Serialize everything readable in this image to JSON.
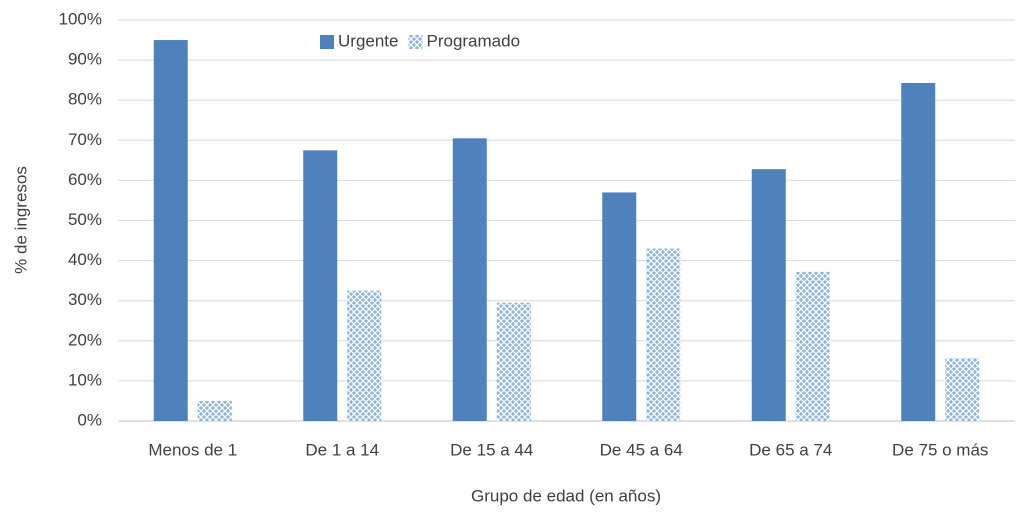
{
  "chart_data": {
    "type": "bar",
    "x_label": "Grupo de edad (en años)",
    "y_label": "% de ingresos",
    "categories": [
      "Menos de 1",
      "De 1 a 14",
      "De 15 a 44",
      "De 45 a 64",
      "De 65 a 74",
      "De 75 o más"
    ],
    "series": [
      {
        "name": "Urgente",
        "color": "#4f81bd",
        "values": [
          95,
          67.5,
          70.5,
          57,
          62.8,
          84.3
        ]
      },
      {
        "name": "Programado",
        "color": "#8eb4e3",
        "pattern": "crosshatch",
        "values": [
          5,
          32.5,
          29.5,
          43,
          37.2,
          15.7
        ]
      }
    ],
    "ylim": [
      0,
      100
    ],
    "yticks": [
      {
        "value": 0,
        "label": "0%"
      },
      {
        "value": 10,
        "label": "10%"
      },
      {
        "value": 20,
        "label": "20%"
      },
      {
        "value": 30,
        "label": "30%"
      },
      {
        "value": 40,
        "label": "40%"
      },
      {
        "value": 50,
        "label": "50%"
      },
      {
        "value": 60,
        "label": "60%"
      },
      {
        "value": 70,
        "label": "70%"
      },
      {
        "value": 80,
        "label": "80%"
      },
      {
        "value": 90,
        "label": "90%"
      },
      {
        "value": 100,
        "label": "100%"
      }
    ],
    "grid": true,
    "legend": "top"
  }
}
